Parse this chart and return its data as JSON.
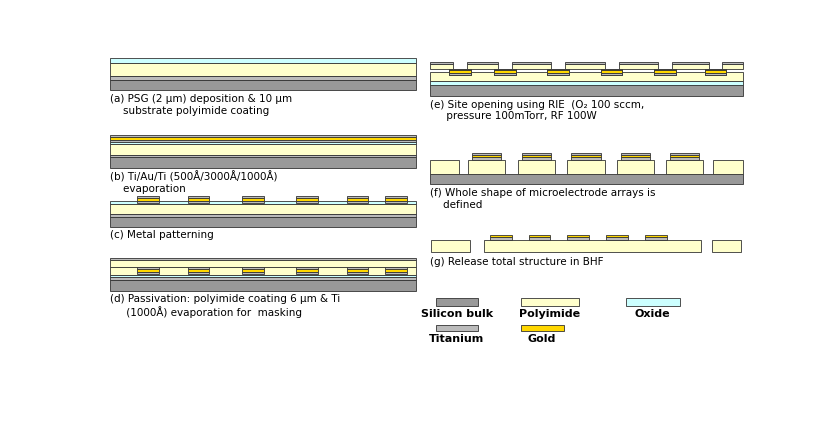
{
  "colors": {
    "silicon": "#999999",
    "polyimide": "#FFFFCC",
    "oxide": "#CCFFFF",
    "titanium": "#BBBBBB",
    "gold": "#FFD700",
    "background": "#FFFFFF"
  },
  "labels": {
    "a": "(a) PSG (2 μm) deposition & 10 μm\n    substrate polyimide coating",
    "b": "(b) Ti/Au/Ti (500Å/3000Å/1000Å)\n    evaporation",
    "c": "(c) Metal patterning",
    "d": "(d) Passivation: polyimide coating 6 μm & Ti\n     (1000Å) evaporation for  masking",
    "e": "(e) Site opening using RIE  (O₂ 100 sccm,\n     pressure 100mTorr, RF 100W",
    "f": "(f) Whole shape of microelectrode arrays is\n    defined",
    "g": "(g) Release total structure in BHF"
  }
}
